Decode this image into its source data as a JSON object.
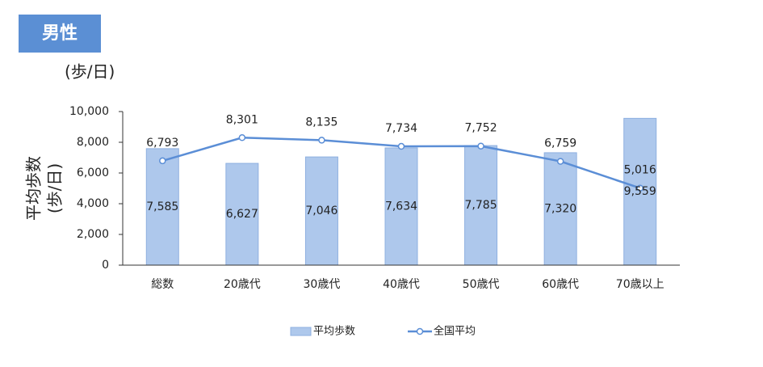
{
  "badge": "男性",
  "unit_label": "(歩/日)",
  "chart_data": {
    "type": "bar_line",
    "ylabel": [
      "平均歩数",
      "(歩/日)"
    ],
    "categories": [
      "総数",
      "20歳代",
      "30歳代",
      "40歳代",
      "50歳代",
      "60歳代",
      "70歳以上"
    ],
    "series": [
      {
        "name": "平均歩数",
        "kind": "bar",
        "color": "#aec8ec",
        "values": [
          7585,
          6627,
          7046,
          7634,
          7785,
          7320,
          9559
        ],
        "value_labels": [
          "7,585",
          "6,627",
          "7,046",
          "7,634",
          "7,785",
          "7,320",
          "9,559"
        ]
      },
      {
        "name": "全国平均",
        "kind": "line",
        "color": "#5b8ed6",
        "values": [
          6793,
          8301,
          8135,
          7734,
          7752,
          6759,
          5016
        ],
        "value_labels": [
          "6,793",
          "8,301",
          "8,135",
          "7,734",
          "7,752",
          "6,759",
          "5,016"
        ]
      }
    ],
    "ylim": [
      0,
      10000
    ],
    "yticks": [
      0,
      {
        "value": 2000,
        "label": "2,000"
      },
      {
        "value": 4000,
        "label": "4,000"
      },
      {
        "value": 6000,
        "label": "6,000"
      },
      {
        "value": 8000,
        "label": "8,000"
      },
      {
        "value": 10000,
        "label": "10,000"
      }
    ],
    "grid": false
  }
}
